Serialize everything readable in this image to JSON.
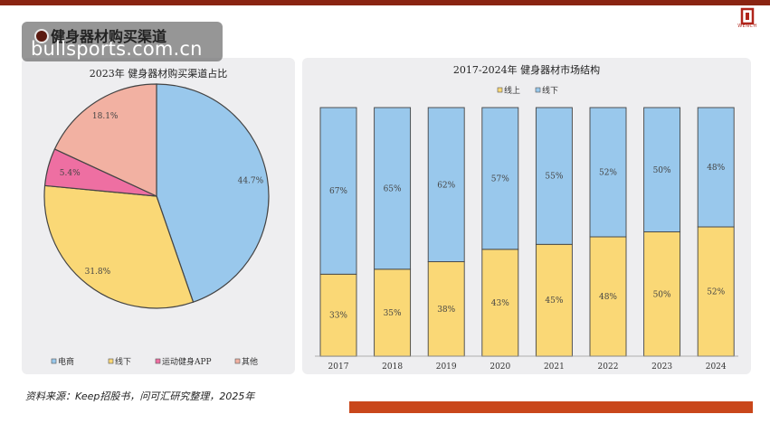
{
  "header": {
    "section_title": "健身器材购买渠道",
    "watermark_url": "bullsports.com.cn",
    "logo_text": "WENCH"
  },
  "colors": {
    "top_bar": "#8a2412",
    "bottom_bar": "#c9471b",
    "panel_bg": "#eeeef0",
    "online": "#fad876",
    "offline": "#99c8ec",
    "ecommerce": "#99c8ec",
    "fitness_app": "#ee6fa2",
    "other": "#f2b1a2"
  },
  "source_note": "资料来源：Keep招股书，问可汇研究整理，2025年",
  "chart_data": [
    {
      "type": "pie",
      "title": "2023年 健身器材购买渠道占比",
      "slices": [
        {
          "name": "电商",
          "value": 44.7,
          "label": "44.7%",
          "color": "#99c8ec"
        },
        {
          "name": "线下",
          "value": 31.8,
          "label": "31.8%",
          "color": "#fad876"
        },
        {
          "name": "运动健身APP",
          "value": 5.4,
          "label": "5.4%",
          "color": "#ee6fa2"
        },
        {
          "name": "其他",
          "value": 18.1,
          "label": "18.1%",
          "color": "#f2b1a2"
        }
      ],
      "legend_position": "bottom"
    },
    {
      "type": "bar",
      "stacked": true,
      "percent": true,
      "title": "2017-2024年 健身器材市场结构",
      "categories": [
        "2017",
        "2018",
        "2019",
        "2020",
        "2021",
        "2022",
        "2023",
        "2024"
      ],
      "series": [
        {
          "name": "线上",
          "values": [
            33,
            35,
            38,
            43,
            45,
            48,
            50,
            52
          ],
          "color": "#fad876"
        },
        {
          "name": "线下",
          "values": [
            67,
            65,
            62,
            57,
            55,
            52,
            50,
            48
          ],
          "color": "#99c8ec"
        }
      ],
      "ylim": [
        0,
        100
      ],
      "legend_position": "top"
    }
  ]
}
